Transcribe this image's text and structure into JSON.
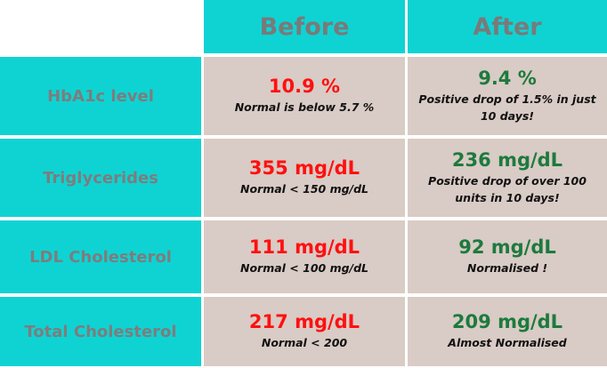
{
  "header": {
    "before": "Before",
    "after": "After"
  },
  "rows": [
    {
      "label": "HbA1c level",
      "before": {
        "value": "10.9 %",
        "note": "Normal is below 5.7 %"
      },
      "after": {
        "value": "9.4 %",
        "note": "Positive drop of 1.5% in just 10 days!"
      }
    },
    {
      "label": "Triglycerides",
      "before": {
        "value": "355 mg/dL",
        "note": "Normal < 150 mg/dL"
      },
      "after": {
        "value": "236 mg/dL",
        "note": "Positive drop of over 100 units in 10 days!"
      }
    },
    {
      "label": "LDL Cholesterol",
      "before": {
        "value": "111 mg/dL",
        "note": "Normal < 100 mg/dL"
      },
      "after": {
        "value": "92 mg/dL",
        "note": "Normalised !"
      }
    },
    {
      "label": "Total Cholesterol",
      "before": {
        "value": "217 mg/dL",
        "note": "Normal < 200"
      },
      "after": {
        "value": "209 mg/dL",
        "note": "Almost Normalised"
      }
    }
  ]
}
